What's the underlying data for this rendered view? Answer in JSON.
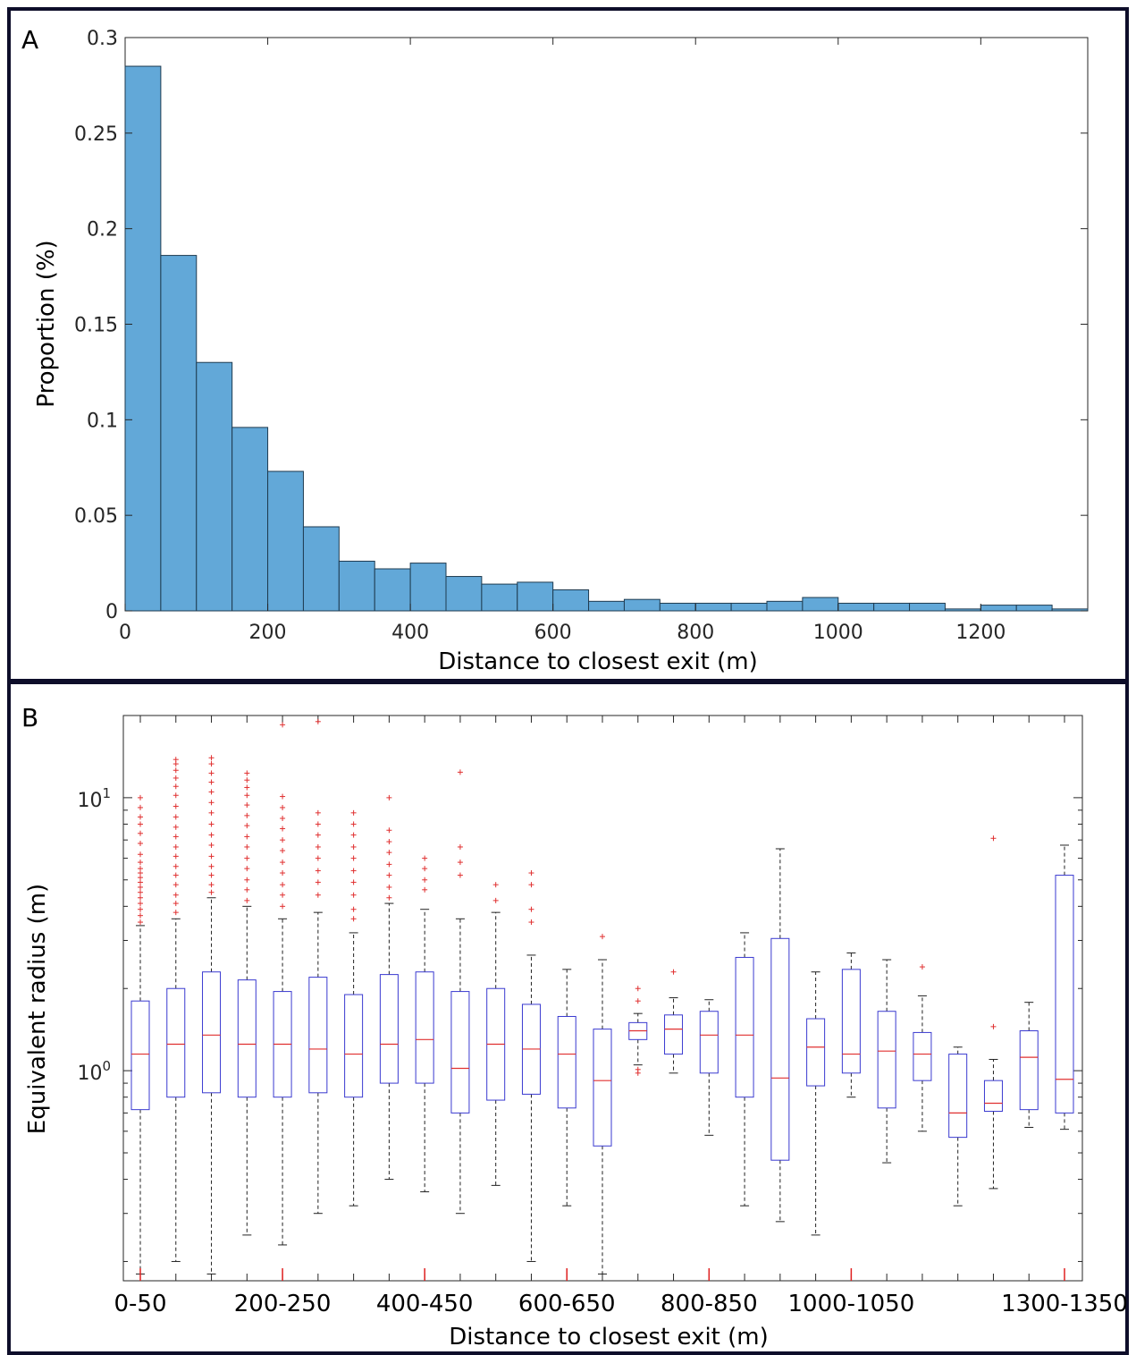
{
  "chart_data": [
    {
      "panel": "A",
      "type": "bar",
      "xlabel": "Distance to closest exit (m)",
      "ylabel": "Proportion (%)",
      "xlim": [
        0,
        1350
      ],
      "ylim": [
        0,
        0.3
      ],
      "xticks": [
        0,
        200,
        400,
        600,
        800,
        1000,
        1200
      ],
      "yticks": [
        0,
        0.05,
        0.1,
        0.15,
        0.2,
        0.25,
        0.3
      ],
      "bin_width": 50,
      "bin_edges": [
        0,
        50,
        100,
        150,
        200,
        250,
        300,
        350,
        400,
        450,
        500,
        550,
        600,
        650,
        700,
        750,
        800,
        850,
        900,
        950,
        1000,
        1050,
        1100,
        1150,
        1200,
        1250,
        1300,
        1350
      ],
      "values": [
        0.285,
        0.186,
        0.13,
        0.096,
        0.073,
        0.044,
        0.026,
        0.022,
        0.025,
        0.018,
        0.014,
        0.015,
        0.011,
        0.005,
        0.006,
        0.004,
        0.004,
        0.004,
        0.005,
        0.007,
        0.004,
        0.004,
        0.004,
        0.001,
        0.003,
        0.003,
        0.001
      ],
      "color": "#62a8d8"
    },
    {
      "panel": "B",
      "type": "box",
      "xlabel": "Distance to closest exit (m)",
      "ylabel": "Equivalent radius (m)",
      "yscale": "log",
      "ylim": [
        0.17,
        20
      ],
      "yticks": [
        {
          "exp": "1",
          "value": 10
        },
        {
          "exp": "0",
          "value": 1
        }
      ],
      "xtick_labels": [
        {
          "index": 0,
          "label": "0-50"
        },
        {
          "index": 4,
          "label": "200-250"
        },
        {
          "index": 8,
          "label": "400-450"
        },
        {
          "index": 12,
          "label": "600-650"
        },
        {
          "index": 16,
          "label": "800-850"
        },
        {
          "index": 20,
          "label": "1000-1050"
        },
        {
          "index": 26,
          "label": "1300-1350"
        }
      ],
      "boxes": [
        {
          "q1": 0.72,
          "median": 1.15,
          "q3": 1.8,
          "whisker_low": 0.18,
          "whisker_high": 3.4,
          "outliers": [
            3.5,
            3.7,
            3.9,
            4.1,
            4.3,
            4.5,
            4.7,
            4.9,
            5.1,
            5.3,
            5.5,
            5.8,
            6.2,
            6.8,
            7.4,
            8.0,
            8.5,
            9.2,
            10.0
          ]
        },
        {
          "q1": 0.8,
          "median": 1.25,
          "q3": 2.0,
          "whisker_low": 0.2,
          "whisker_high": 3.6,
          "outliers": [
            3.8,
            4.1,
            4.4,
            4.8,
            5.2,
            5.6,
            6.1,
            6.6,
            7.2,
            7.8,
            8.5,
            9.3,
            10.2,
            11.0,
            11.8,
            12.6,
            13.3,
            13.8
          ]
        },
        {
          "q1": 0.83,
          "median": 1.35,
          "q3": 2.3,
          "whisker_low": 0.18,
          "whisker_high": 4.3,
          "outliers": [
            4.5,
            4.8,
            5.2,
            5.6,
            6.1,
            6.7,
            7.3,
            8.0,
            8.8,
            9.6,
            10.5,
            11.4,
            12.3,
            13.3,
            14.0
          ]
        },
        {
          "q1": 0.8,
          "median": 1.25,
          "q3": 2.15,
          "whisker_low": 0.25,
          "whisker_high": 4.0,
          "outliers": [
            4.2,
            4.6,
            5.0,
            5.5,
            6.0,
            6.6,
            7.2,
            7.9,
            8.6,
            9.4,
            10.2,
            10.9,
            11.6,
            12.3
          ]
        },
        {
          "q1": 0.8,
          "median": 1.25,
          "q3": 1.95,
          "whisker_low": 0.23,
          "whisker_high": 3.6,
          "outliers": [
            4.0,
            4.4,
            4.8,
            5.3,
            5.8,
            6.4,
            7.0,
            7.7,
            8.4,
            9.2,
            10.1,
            18.5
          ]
        },
        {
          "q1": 0.83,
          "median": 1.2,
          "q3": 2.2,
          "whisker_low": 0.3,
          "whisker_high": 3.8,
          "outliers": [
            4.4,
            4.9,
            5.4,
            6.0,
            6.6,
            7.3,
            8.0,
            8.8,
            19.0
          ]
        },
        {
          "q1": 0.8,
          "median": 1.15,
          "q3": 1.9,
          "whisker_low": 0.32,
          "whisker_high": 3.2,
          "outliers": [
            3.6,
            3.9,
            4.4,
            4.9,
            5.4,
            6.0,
            6.6,
            7.3,
            8.0,
            8.8
          ]
        },
        {
          "q1": 0.9,
          "median": 1.25,
          "q3": 2.25,
          "whisker_low": 0.4,
          "whisker_high": 4.1,
          "outliers": [
            4.3,
            4.7,
            5.2,
            5.7,
            6.3,
            6.9,
            7.6,
            10.0
          ]
        },
        {
          "q1": 0.9,
          "median": 1.3,
          "q3": 2.3,
          "whisker_low": 0.36,
          "whisker_high": 3.9,
          "outliers": [
            4.6,
            5.0,
            5.5,
            6.0
          ]
        },
        {
          "q1": 0.7,
          "median": 1.02,
          "q3": 1.95,
          "whisker_low": 0.3,
          "whisker_high": 3.6,
          "outliers": [
            5.2,
            5.8,
            6.6,
            12.4
          ]
        },
        {
          "q1": 0.78,
          "median": 1.25,
          "q3": 2.0,
          "whisker_low": 0.38,
          "whisker_high": 3.8,
          "outliers": [
            4.2,
            4.8
          ]
        },
        {
          "q1": 0.82,
          "median": 1.2,
          "q3": 1.75,
          "whisker_low": 0.2,
          "whisker_high": 2.65,
          "outliers": [
            3.5,
            3.9,
            4.8,
            5.3
          ]
        },
        {
          "q1": 0.73,
          "median": 1.15,
          "q3": 1.58,
          "whisker_low": 0.32,
          "whisker_high": 2.35,
          "outliers": []
        },
        {
          "q1": 0.53,
          "median": 0.92,
          "q3": 1.42,
          "whisker_low": 0.18,
          "whisker_high": 2.55,
          "outliers": [
            3.1
          ]
        },
        {
          "q1": 1.3,
          "median": 1.4,
          "q3": 1.5,
          "whisker_low": 1.05,
          "whisker_high": 1.62,
          "outliers": [
            0.98,
            1.01,
            1.8,
            2.0
          ]
        },
        {
          "q1": 1.15,
          "median": 1.42,
          "q3": 1.6,
          "whisker_low": 0.98,
          "whisker_high": 1.85,
          "outliers": [
            2.3
          ]
        },
        {
          "q1": 0.98,
          "median": 1.35,
          "q3": 1.65,
          "whisker_low": 0.58,
          "whisker_high": 1.82,
          "outliers": []
        },
        {
          "q1": 0.8,
          "median": 1.35,
          "q3": 2.6,
          "whisker_low": 0.32,
          "whisker_high": 3.2,
          "outliers": []
        },
        {
          "q1": 0.47,
          "median": 0.94,
          "q3": 3.05,
          "whisker_low": 0.28,
          "whisker_high": 6.5,
          "outliers": []
        },
        {
          "q1": 0.88,
          "median": 1.22,
          "q3": 1.55,
          "whisker_low": 0.25,
          "whisker_high": 2.3,
          "outliers": []
        },
        {
          "q1": 0.98,
          "median": 1.15,
          "q3": 2.35,
          "whisker_low": 0.8,
          "whisker_high": 2.7,
          "outliers": []
        },
        {
          "q1": 0.73,
          "median": 1.18,
          "q3": 1.65,
          "whisker_low": 0.46,
          "whisker_high": 2.55,
          "outliers": []
        },
        {
          "q1": 0.92,
          "median": 1.15,
          "q3": 1.38,
          "whisker_low": 0.6,
          "whisker_high": 1.88,
          "outliers": [
            2.4
          ]
        },
        {
          "q1": 0.57,
          "median": 0.7,
          "q3": 1.15,
          "whisker_low": 0.32,
          "whisker_high": 1.22,
          "outliers": []
        },
        {
          "q1": 0.71,
          "median": 0.76,
          "q3": 0.92,
          "whisker_low": 0.37,
          "whisker_high": 1.1,
          "outliers": [
            1.45,
            7.1
          ]
        },
        {
          "q1": 0.72,
          "median": 1.12,
          "q3": 1.4,
          "whisker_low": 0.62,
          "whisker_high": 1.78,
          "outliers": []
        },
        {
          "q1": 0.7,
          "median": 0.93,
          "q3": 5.2,
          "whisker_low": 0.61,
          "whisker_high": 6.7,
          "outliers": []
        }
      ],
      "box_color": "#3a3ad0",
      "median_color": "#e03030",
      "outlier_color": "#e03030"
    }
  ]
}
